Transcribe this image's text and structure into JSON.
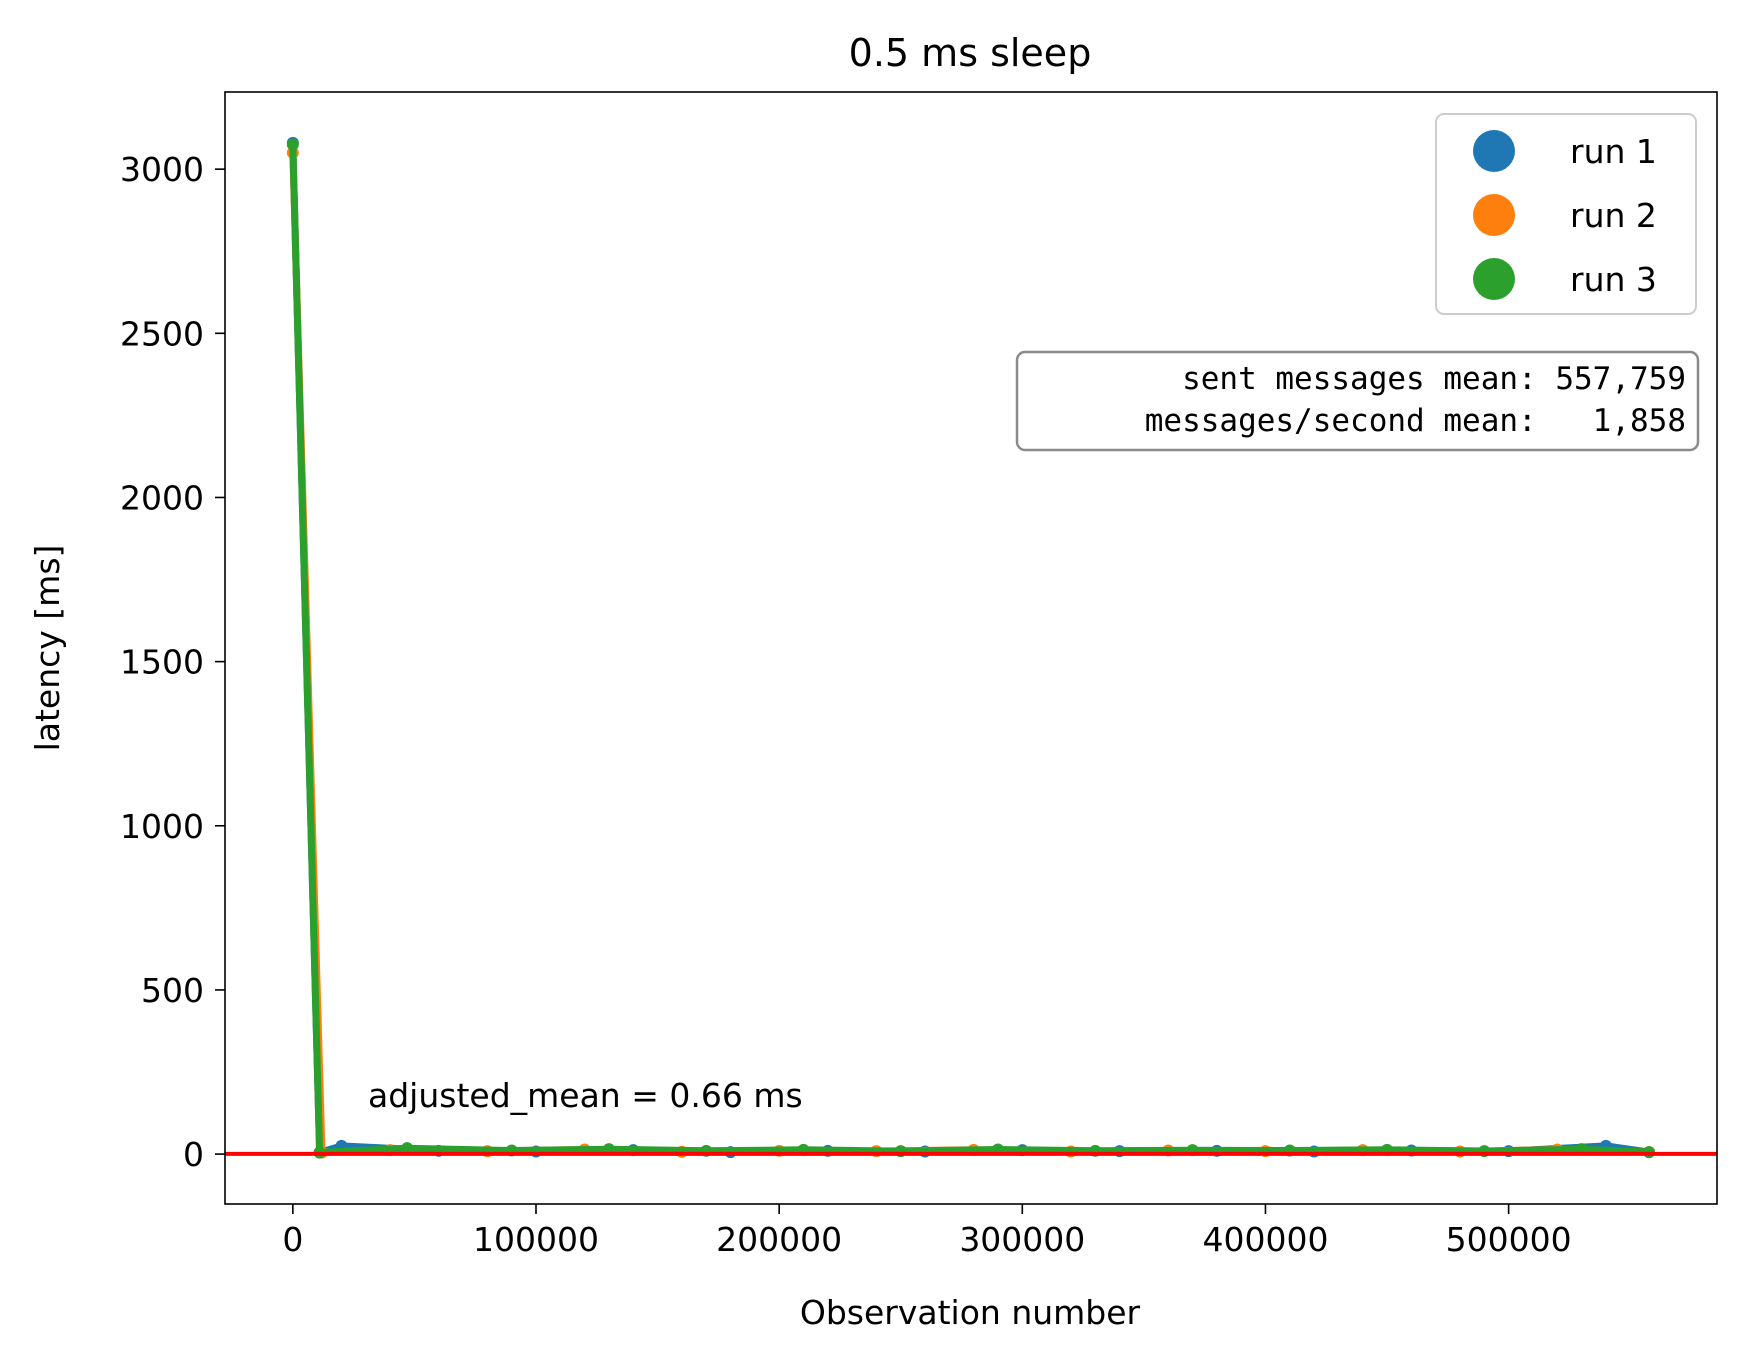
{
  "chart_data": {
    "type": "scatter",
    "title": "0.5 ms sleep",
    "xlabel": "Observation number",
    "ylabel": "latency [ms]",
    "xlim": [
      -27900,
      585700
    ],
    "ylim": [
      -152,
      3235
    ],
    "xticks": [
      0,
      100000,
      200000,
      300000,
      400000,
      500000
    ],
    "yticks": [
      0,
      500,
      1000,
      1500,
      2000,
      2500,
      3000
    ],
    "xtick_labels": [
      "0",
      "100000",
      "200000",
      "300000",
      "400000",
      "500000"
    ],
    "ytick_labels": [
      "0",
      "500",
      "1000",
      "1500",
      "2000",
      "2500",
      "3000"
    ],
    "legend_position": "top-right",
    "series": [
      {
        "name": "run 1",
        "color": "#1f77b4",
        "x": [
          0,
          11000,
          20000,
          60000,
          100000,
          140000,
          180000,
          220000,
          260000,
          300000,
          340000,
          380000,
          420000,
          460000,
          500000,
          540000,
          557759
        ],
        "y": [
          3080,
          5,
          25,
          10,
          8,
          12,
          6,
          10,
          8,
          12,
          9,
          10,
          8,
          11,
          9,
          25,
          6
        ]
      },
      {
        "name": "run 2",
        "color": "#ff7f0e",
        "x": [
          0,
          12000,
          40000,
          80000,
          120000,
          160000,
          200000,
          240000,
          280000,
          320000,
          360000,
          400000,
          440000,
          480000,
          520000,
          557759
        ],
        "y": [
          3050,
          5,
          12,
          9,
          14,
          7,
          10,
          9,
          13,
          8,
          11,
          9,
          12,
          8,
          14,
          6
        ]
      },
      {
        "name": "run 3",
        "color": "#2ca02c",
        "x": [
          0,
          11000,
          47000,
          90000,
          130000,
          170000,
          210000,
          250000,
          290000,
          330000,
          370000,
          410000,
          450000,
          490000,
          530000,
          557759
        ],
        "y": [
          3075,
          5,
          18,
          11,
          15,
          10,
          13,
          9,
          14,
          10,
          12,
          11,
          13,
          9,
          15,
          6
        ]
      }
    ],
    "reference_line": {
      "y": 0.66,
      "color": "#ff0000"
    },
    "annotation": "adjusted_mean = 0.66 ms",
    "stats_box": {
      "line1": "  sent messages mean: 557,759",
      "line2": "messages/second mean:   1,858"
    }
  }
}
